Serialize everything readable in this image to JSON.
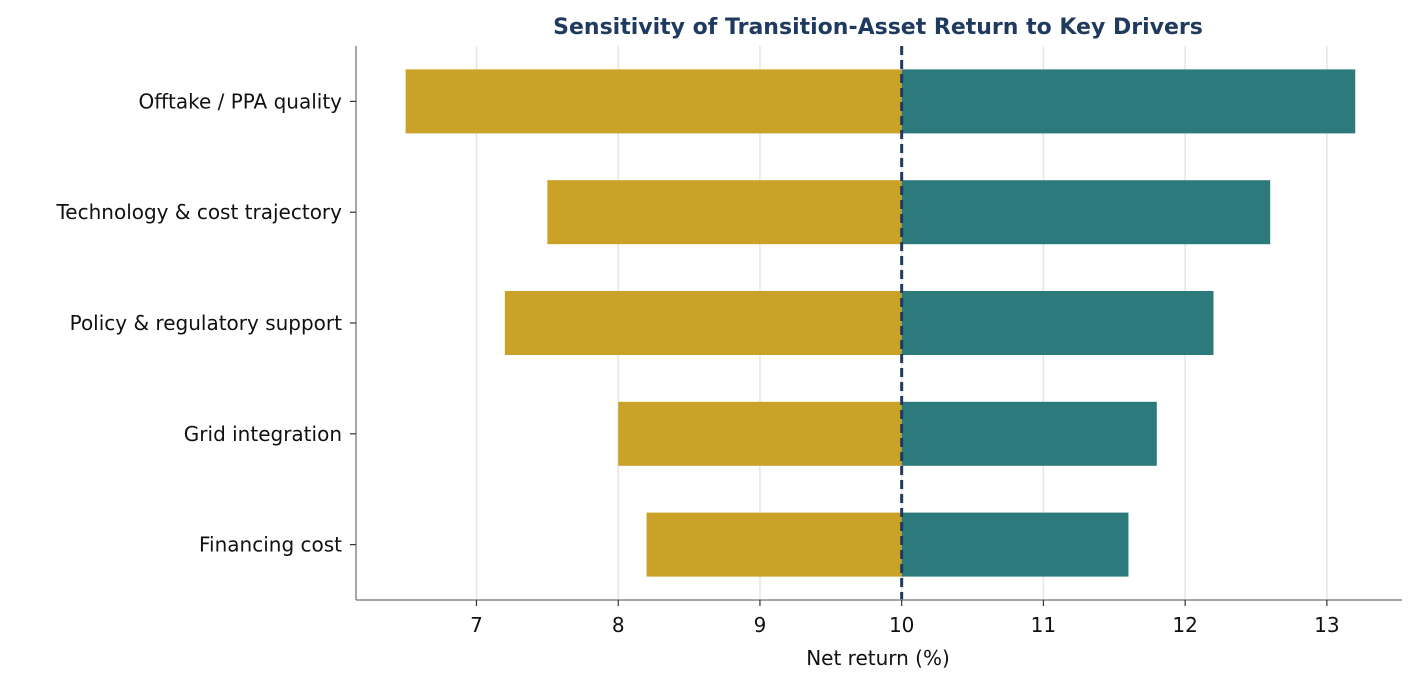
{
  "chart_data": {
    "type": "bar",
    "orientation": "horizontal",
    "chart_style": "tornado",
    "title": "Sensitivity of Transition-Asset Return to Key Drivers",
    "xlabel": "Net return (%)",
    "ylabel": "",
    "base_value": 10,
    "xlim": [
      6.15,
      13.53
    ],
    "xticks": [
      7,
      8,
      9,
      10,
      11,
      12,
      13
    ],
    "grid": "vertical",
    "legend": "none",
    "categories": [
      "Offtake / PPA quality",
      "Technology & cost trajectory",
      "Policy & regulatory support",
      "Grid integration",
      "Financing cost"
    ],
    "series": [
      {
        "values": [
          6.5,
          7.5,
          7.2,
          8.0,
          8.2
        ],
        "color": "#c9a227"
      },
      {
        "values": [
          13.2,
          12.6,
          12.2,
          11.8,
          11.6
        ],
        "color": "#2c7a7b"
      }
    ],
    "colors": {
      "title": "#1f3a5f",
      "reference_line": "#1f3a5f",
      "grid": "#e5e5e5",
      "axis": "#888888"
    }
  }
}
